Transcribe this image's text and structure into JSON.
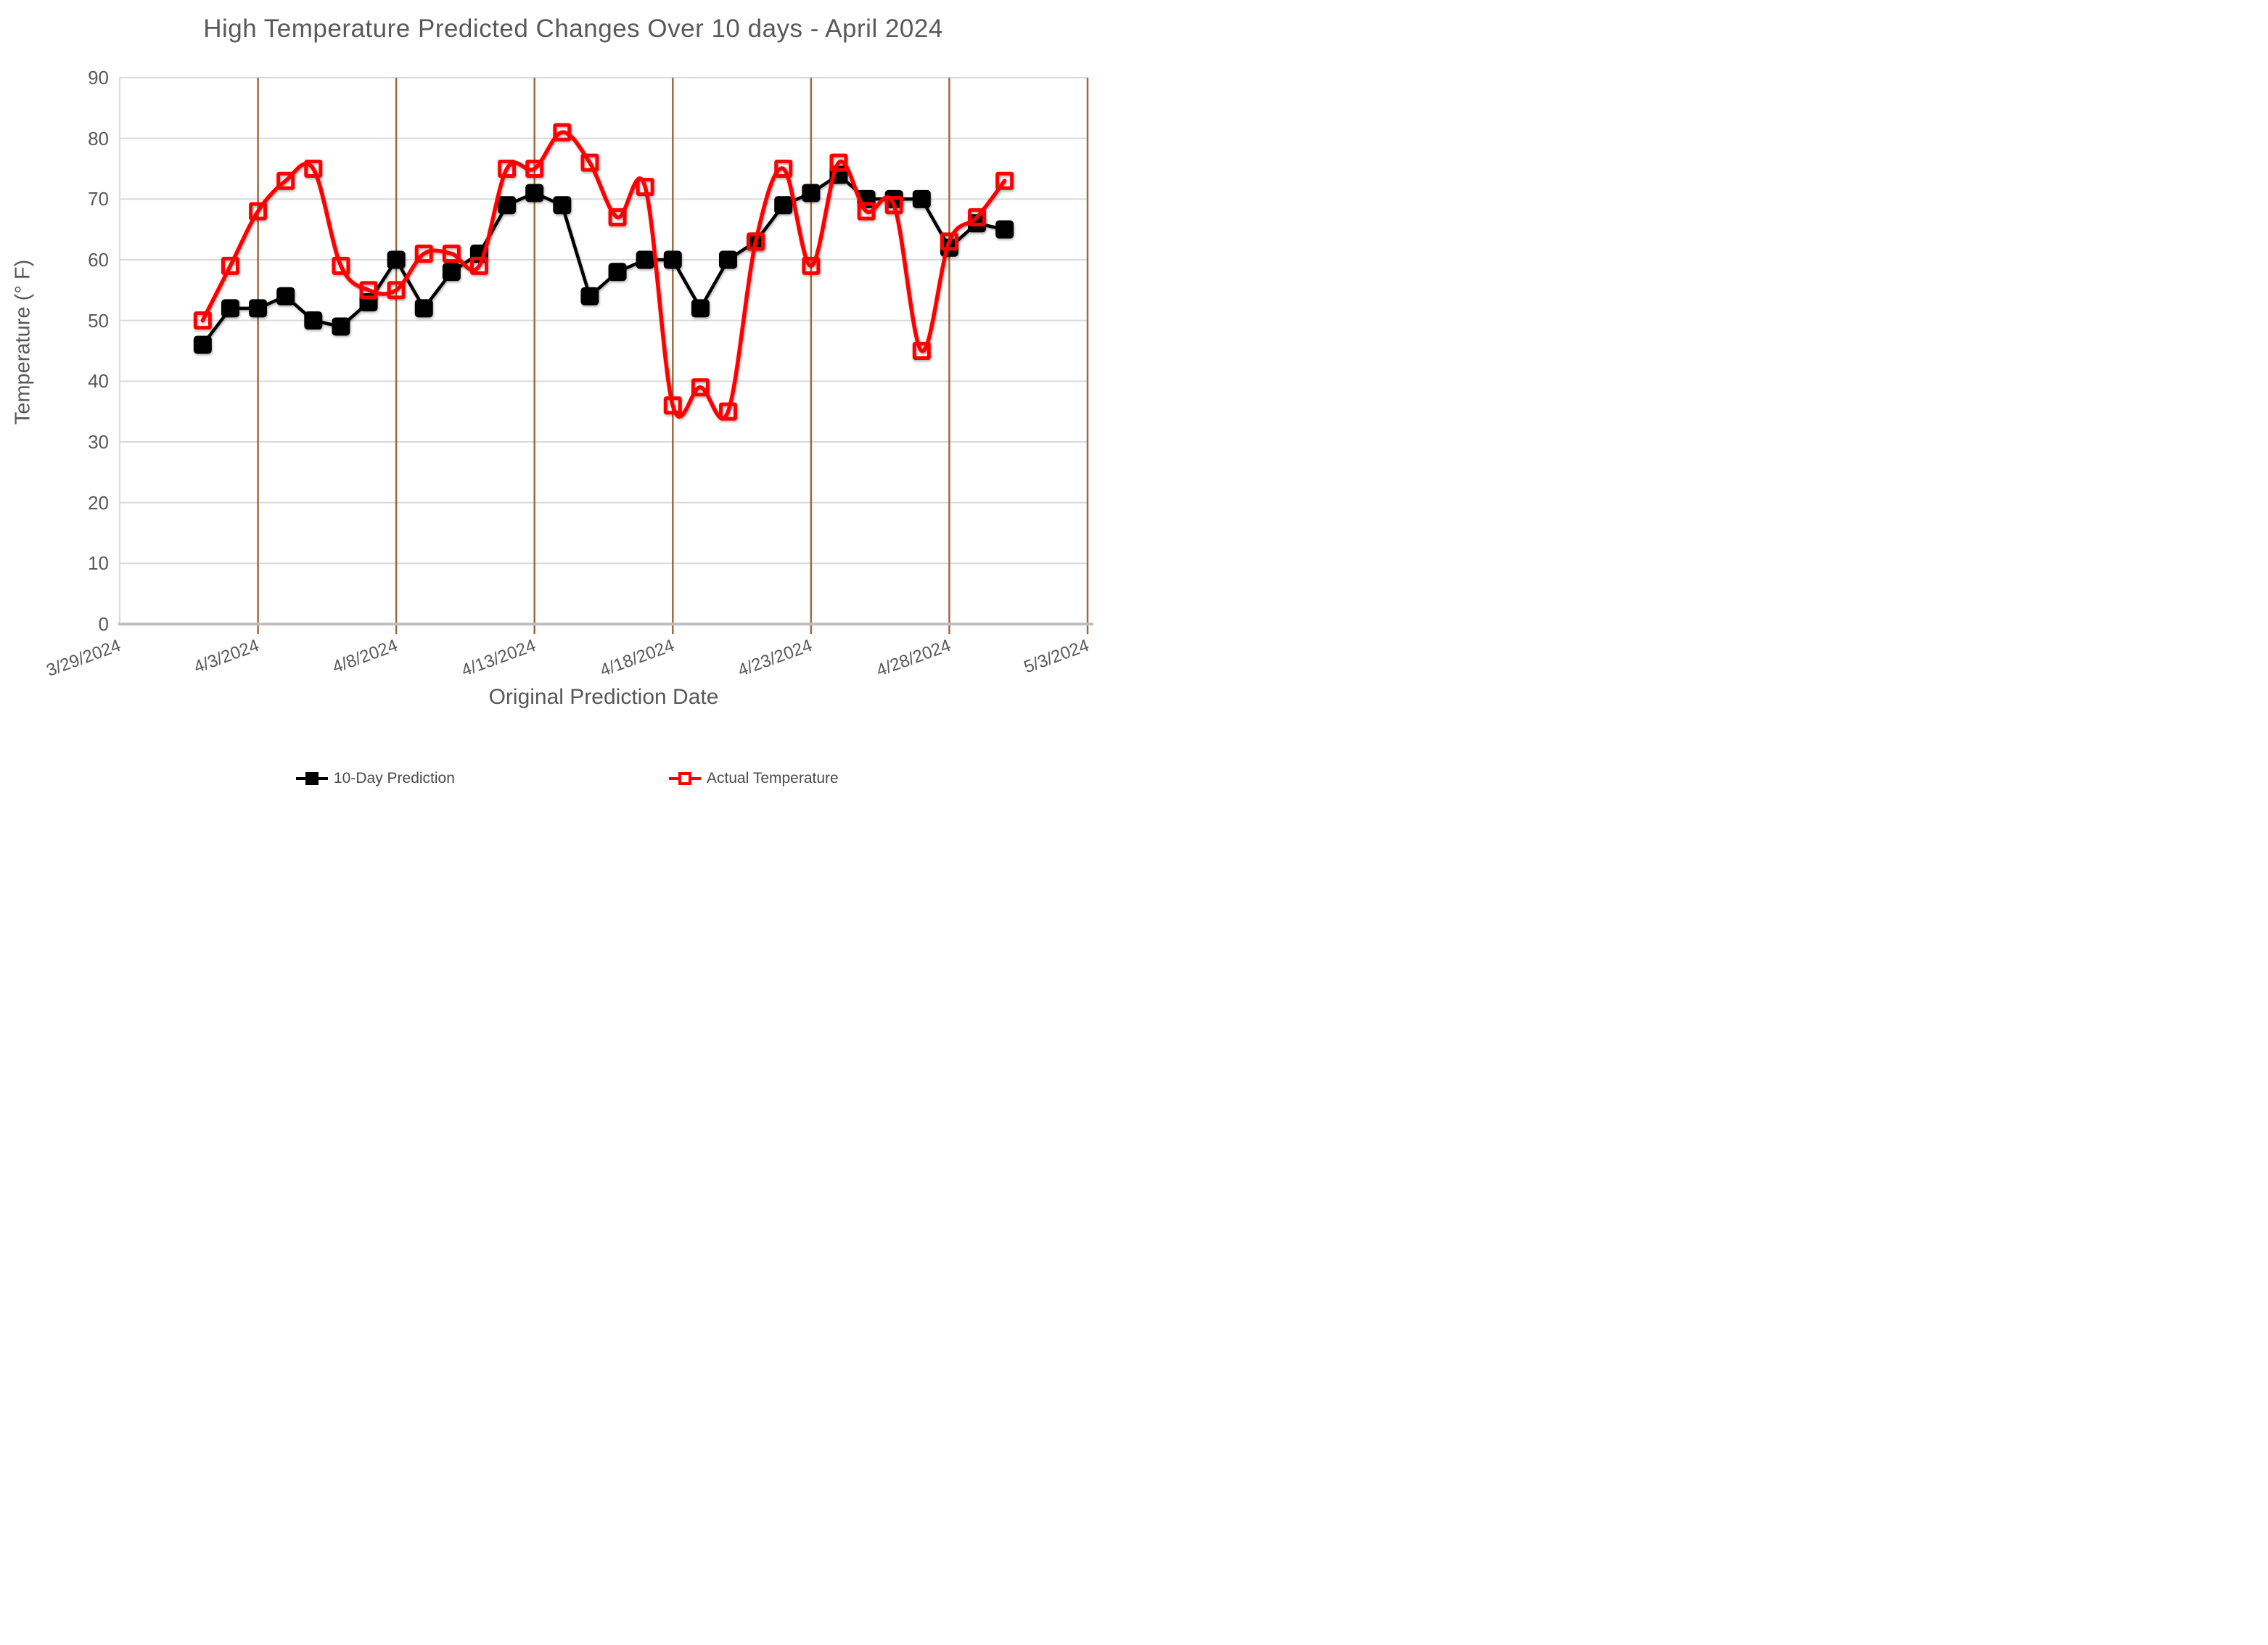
{
  "chart_data": {
    "type": "line",
    "title": "High Temperature Predicted Changes Over 10 days - April 2024",
    "xlabel": "Original Prediction Date",
    "ylabel": "Temperature (° F)",
    "ylim": [
      0,
      90
    ],
    "ytick_step": 10,
    "grid": "on",
    "legend_position": "bottom",
    "xticks": [
      "3/29/2024",
      "4/3/2024",
      "4/8/2024",
      "4/13/2024",
      "4/18/2024",
      "4/23/2024",
      "4/28/2024",
      "5/3/2024"
    ],
    "x": [
      "4/1/2024",
      "4/2/2024",
      "4/3/2024",
      "4/4/2024",
      "4/5/2024",
      "4/6/2024",
      "4/7/2024",
      "4/8/2024",
      "4/9/2024",
      "4/10/2024",
      "4/11/2024",
      "4/12/2024",
      "4/13/2024",
      "4/14/2024",
      "4/15/2024",
      "4/16/2024",
      "4/17/2024",
      "4/18/2024",
      "4/19/2024",
      "4/20/2024",
      "4/21/2024",
      "4/22/2024",
      "4/23/2024",
      "4/24/2024",
      "4/25/2024",
      "4/26/2024",
      "4/27/2024",
      "4/28/2024",
      "4/29/2024",
      "4/30/2024"
    ],
    "series": [
      {
        "name": "10-Day Prediction",
        "color": "#000000",
        "marker": "filled-square",
        "smooth": false,
        "values": [
          46,
          52,
          52,
          54,
          50,
          49,
          53,
          60,
          52,
          58,
          61,
          69,
          71,
          69,
          54,
          58,
          60,
          60,
          52,
          60,
          63,
          69,
          71,
          74,
          70,
          70,
          70,
          62,
          66,
          65
        ]
      },
      {
        "name": "Actual Temperature",
        "color": "#FF0000",
        "marker": "open-square",
        "smooth": true,
        "values": [
          50,
          59,
          68,
          73,
          75,
          59,
          55,
          55,
          61,
          61,
          59,
          75,
          75,
          81,
          76,
          67,
          72,
          36,
          39,
          35,
          63,
          75,
          59,
          76,
          68,
          69,
          45,
          63,
          67,
          73
        ]
      }
    ],
    "colors": {
      "h_gridline": "#D9D9D9",
      "v_gridline": "#A0693C",
      "axis_line": "#BFBFBF",
      "tick_text": "#595959",
      "title_text": "#595959",
      "legend_text": "#4a4a4a"
    }
  }
}
